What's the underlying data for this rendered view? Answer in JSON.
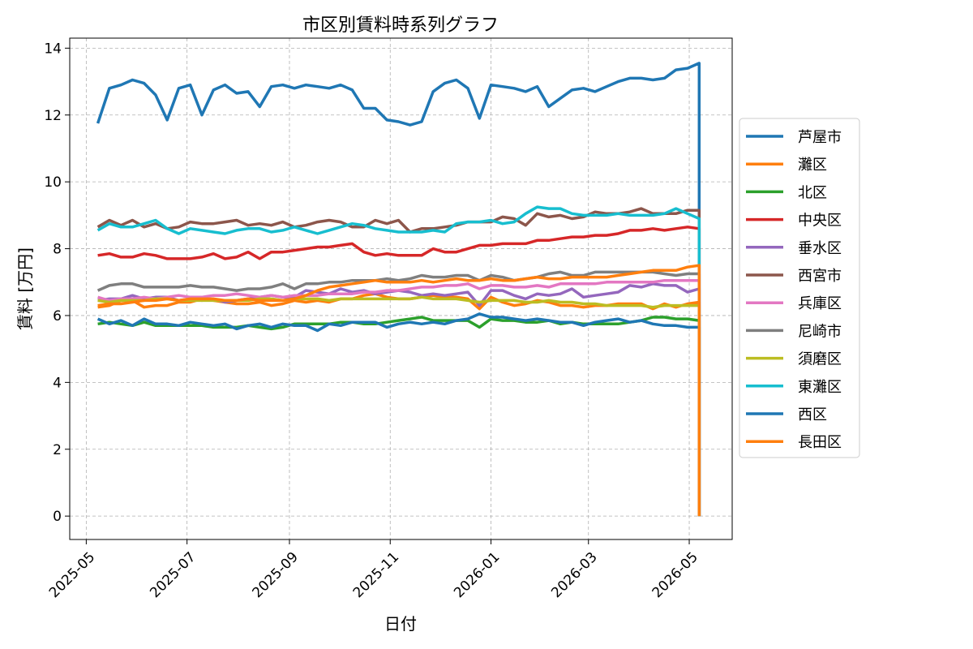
{
  "chart_data": {
    "type": "line",
    "title": "市区別賃料時系列グラフ",
    "xlabel": "日付",
    "ylabel": "賃料 [万円]",
    "ylim": [
      -0.7,
      14.3
    ],
    "yticks": [
      0,
      2,
      4,
      6,
      8,
      10,
      12,
      14
    ],
    "xlim": [
      "2025-04-21",
      "2026-05-27"
    ],
    "xticks": [
      "2025-05-01",
      "2025-07-01",
      "2025-09-01",
      "2025-11-01",
      "2026-01-01",
      "2026-03-01",
      "2026-05-01"
    ],
    "xtick_labels": [
      "2025-05",
      "2025-07",
      "2025-09",
      "2025-11",
      "2026-01",
      "2026-03",
      "2026-05"
    ],
    "grid": true,
    "legend_position": "right-outside",
    "x_dates": [
      "2025-05-08",
      "2025-05-15",
      "2025-05-22",
      "2025-05-29",
      "2025-06-05",
      "2025-06-12",
      "2025-06-19",
      "2025-06-26",
      "2025-07-03",
      "2025-07-10",
      "2025-07-17",
      "2025-07-24",
      "2025-07-31",
      "2025-08-07",
      "2025-08-14",
      "2025-08-21",
      "2025-08-28",
      "2025-09-04",
      "2025-09-11",
      "2025-09-18",
      "2025-09-25",
      "2025-10-02",
      "2025-10-09",
      "2025-10-16",
      "2025-10-23",
      "2025-10-30",
      "2025-11-06",
      "2025-11-13",
      "2025-11-20",
      "2025-11-27",
      "2025-12-04",
      "2025-12-11",
      "2025-12-18",
      "2025-12-25",
      "2026-01-01",
      "2026-01-08",
      "2026-01-15",
      "2026-01-22",
      "2026-01-29",
      "2026-02-05",
      "2026-02-12",
      "2026-02-19",
      "2026-02-26",
      "2026-03-05",
      "2026-03-12",
      "2026-03-19",
      "2026-03-26",
      "2026-04-02",
      "2026-04-09",
      "2026-04-16",
      "2026-04-23",
      "2026-04-30",
      "2026-05-07"
    ],
    "final_point": {
      "x": "2026-05-07",
      "y": 0
    },
    "series": [
      {
        "name": "芦屋市",
        "color": "#1f77b4",
        "values": [
          11.75,
          12.8,
          12.9,
          13.05,
          12.95,
          12.6,
          11.85,
          12.8,
          12.9,
          12.0,
          12.75,
          12.9,
          12.65,
          12.7,
          12.25,
          12.85,
          12.9,
          12.8,
          12.9,
          12.85,
          12.8,
          12.9,
          12.75,
          12.2,
          12.2,
          11.85,
          11.8,
          11.7,
          11.8,
          12.7,
          12.95,
          13.05,
          12.8,
          11.9,
          12.9,
          12.85,
          12.8,
          12.7,
          12.85,
          12.25,
          12.5,
          12.75,
          12.8,
          12.7,
          12.85,
          13.0,
          13.1,
          13.1,
          13.05,
          13.1,
          13.35,
          13.4,
          13.55
        ]
      },
      {
        "name": "灘区",
        "color": "#ff7f0e",
        "values": [
          6.25,
          6.3,
          6.45,
          6.45,
          6.25,
          6.3,
          6.3,
          6.4,
          6.4,
          6.5,
          6.45,
          6.4,
          6.35,
          6.35,
          6.4,
          6.3,
          6.35,
          6.45,
          6.4,
          6.45,
          6.4,
          6.5,
          6.5,
          6.6,
          6.65,
          6.55,
          6.5,
          6.5,
          6.55,
          6.6,
          6.55,
          6.55,
          6.5,
          6.2,
          6.55,
          6.4,
          6.3,
          6.35,
          6.45,
          6.4,
          6.3,
          6.3,
          6.25,
          6.3,
          6.3,
          6.35,
          6.35,
          6.35,
          6.2,
          6.35,
          6.25,
          6.35,
          6.4
        ]
      },
      {
        "name": "北区",
        "color": "#2ca02c",
        "values": [
          5.75,
          5.8,
          5.75,
          5.7,
          5.8,
          5.7,
          5.7,
          5.7,
          5.7,
          5.7,
          5.65,
          5.65,
          5.65,
          5.7,
          5.65,
          5.6,
          5.65,
          5.75,
          5.75,
          5.75,
          5.75,
          5.8,
          5.8,
          5.75,
          5.75,
          5.8,
          5.85,
          5.9,
          5.95,
          5.85,
          5.85,
          5.85,
          5.85,
          5.65,
          5.9,
          5.85,
          5.85,
          5.8,
          5.8,
          5.85,
          5.75,
          5.8,
          5.75,
          5.75,
          5.75,
          5.75,
          5.8,
          5.85,
          5.95,
          5.95,
          5.9,
          5.9,
          5.85
        ]
      },
      {
        "name": "中央区",
        "color": "#d62728",
        "values": [
          7.8,
          7.85,
          7.75,
          7.75,
          7.85,
          7.8,
          7.7,
          7.7,
          7.7,
          7.75,
          7.85,
          7.7,
          7.75,
          7.9,
          7.7,
          7.9,
          7.9,
          7.95,
          8.0,
          8.05,
          8.05,
          8.1,
          8.15,
          7.9,
          7.8,
          7.85,
          7.8,
          7.8,
          7.8,
          8.0,
          7.9,
          7.9,
          8.0,
          8.1,
          8.1,
          8.15,
          8.15,
          8.15,
          8.25,
          8.25,
          8.3,
          8.35,
          8.35,
          8.4,
          8.4,
          8.45,
          8.55,
          8.55,
          8.6,
          8.55,
          8.6,
          8.65,
          8.6
        ]
      },
      {
        "name": "垂水区",
        "color": "#9467bd",
        "values": [
          6.45,
          6.5,
          6.5,
          6.6,
          6.5,
          6.55,
          6.55,
          6.45,
          6.5,
          6.45,
          6.5,
          6.4,
          6.45,
          6.5,
          6.55,
          6.6,
          6.55,
          6.55,
          6.75,
          6.7,
          6.65,
          6.8,
          6.7,
          6.75,
          6.65,
          6.7,
          6.75,
          6.7,
          6.6,
          6.65,
          6.6,
          6.65,
          6.7,
          6.3,
          6.75,
          6.75,
          6.6,
          6.5,
          6.65,
          6.6,
          6.65,
          6.8,
          6.55,
          6.6,
          6.65,
          6.7,
          6.9,
          6.85,
          6.95,
          6.9,
          6.9,
          6.7,
          6.8
        ]
      },
      {
        "name": "西宮市",
        "color": "#8c564b",
        "values": [
          8.65,
          8.85,
          8.7,
          8.85,
          8.65,
          8.75,
          8.6,
          8.65,
          8.8,
          8.75,
          8.75,
          8.8,
          8.85,
          8.7,
          8.75,
          8.7,
          8.8,
          8.65,
          8.7,
          8.8,
          8.85,
          8.8,
          8.65,
          8.65,
          8.85,
          8.75,
          8.85,
          8.5,
          8.6,
          8.6,
          8.65,
          8.7,
          8.8,
          8.8,
          8.8,
          8.95,
          8.9,
          8.7,
          9.05,
          8.95,
          9.0,
          8.9,
          8.95,
          9.1,
          9.05,
          9.05,
          9.1,
          9.2,
          9.05,
          9.05,
          9.05,
          9.15,
          9.15
        ]
      },
      {
        "name": "兵庫区",
        "color": "#e377c2",
        "values": [
          6.55,
          6.45,
          6.5,
          6.5,
          6.55,
          6.5,
          6.55,
          6.6,
          6.55,
          6.55,
          6.6,
          6.6,
          6.65,
          6.6,
          6.55,
          6.6,
          6.55,
          6.6,
          6.6,
          6.6,
          6.65,
          6.65,
          6.65,
          6.7,
          6.7,
          6.75,
          6.75,
          6.8,
          6.85,
          6.85,
          6.9,
          6.9,
          6.95,
          6.8,
          6.9,
          6.9,
          6.85,
          6.85,
          6.9,
          6.85,
          6.95,
          6.95,
          6.95,
          6.95,
          7.0,
          7.0,
          7.0,
          7.0,
          7.0,
          7.05,
          7.05,
          7.05,
          7.05
        ]
      },
      {
        "name": "尼崎市",
        "color": "#7f7f7f",
        "values": [
          6.75,
          6.9,
          6.95,
          6.95,
          6.85,
          6.85,
          6.85,
          6.85,
          6.9,
          6.85,
          6.85,
          6.8,
          6.75,
          6.8,
          6.8,
          6.85,
          6.95,
          6.8,
          6.95,
          6.95,
          7.0,
          7.0,
          7.05,
          7.05,
          7.05,
          7.1,
          7.05,
          7.1,
          7.2,
          7.15,
          7.15,
          7.2,
          7.2,
          7.05,
          7.2,
          7.15,
          7.05,
          7.1,
          7.15,
          7.25,
          7.3,
          7.2,
          7.2,
          7.3,
          7.3,
          7.3,
          7.3,
          7.3,
          7.3,
          7.25,
          7.2,
          7.25,
          7.25
        ]
      },
      {
        "name": "須磨区",
        "color": "#bcbd22",
        "values": [
          6.45,
          6.4,
          6.45,
          6.45,
          6.45,
          6.5,
          6.5,
          6.45,
          6.45,
          6.45,
          6.45,
          6.45,
          6.45,
          6.45,
          6.5,
          6.5,
          6.45,
          6.5,
          6.5,
          6.5,
          6.45,
          6.5,
          6.5,
          6.5,
          6.5,
          6.5,
          6.5,
          6.5,
          6.55,
          6.5,
          6.5,
          6.5,
          6.45,
          6.4,
          6.45,
          6.45,
          6.45,
          6.4,
          6.4,
          6.45,
          6.4,
          6.4,
          6.35,
          6.35,
          6.3,
          6.3,
          6.3,
          6.3,
          6.25,
          6.3,
          6.3,
          6.3,
          6.3
        ]
      },
      {
        "name": "東灘区",
        "color": "#17becf",
        "values": [
          8.55,
          8.75,
          8.65,
          8.65,
          8.75,
          8.85,
          8.6,
          8.45,
          8.6,
          8.55,
          8.5,
          8.45,
          8.55,
          8.6,
          8.6,
          8.5,
          8.55,
          8.65,
          8.55,
          8.45,
          8.55,
          8.65,
          8.75,
          8.7,
          8.6,
          8.55,
          8.5,
          8.5,
          8.5,
          8.55,
          8.5,
          8.75,
          8.8,
          8.8,
          8.85,
          8.75,
          8.8,
          9.05,
          9.25,
          9.2,
          9.2,
          9.05,
          9.0,
          9.0,
          9.0,
          9.05,
          9.0,
          9.0,
          9.0,
          9.05,
          9.2,
          9.05,
          8.9
        ]
      },
      {
        "name": "西区",
        "color": "#1f77b4",
        "values": [
          5.9,
          5.75,
          5.85,
          5.7,
          5.9,
          5.75,
          5.75,
          5.7,
          5.8,
          5.75,
          5.7,
          5.75,
          5.6,
          5.7,
          5.75,
          5.65,
          5.75,
          5.7,
          5.7,
          5.55,
          5.75,
          5.7,
          5.8,
          5.8,
          5.8,
          5.65,
          5.75,
          5.8,
          5.75,
          5.8,
          5.75,
          5.85,
          5.9,
          6.05,
          5.95,
          5.95,
          5.9,
          5.85,
          5.9,
          5.85,
          5.8,
          5.8,
          5.7,
          5.8,
          5.85,
          5.9,
          5.8,
          5.85,
          5.75,
          5.7,
          5.7,
          5.65,
          5.65
        ]
      },
      {
        "name": "長田区",
        "color": "#ff7f0e",
        "values": [
          6.3,
          6.35,
          6.35,
          6.4,
          6.45,
          6.45,
          6.5,
          6.45,
          6.5,
          6.5,
          6.5,
          6.45,
          6.45,
          6.5,
          6.45,
          6.45,
          6.45,
          6.5,
          6.6,
          6.75,
          6.85,
          6.9,
          6.95,
          7.0,
          7.05,
          7.0,
          7.0,
          7.0,
          7.05,
          7.0,
          7.05,
          7.1,
          7.05,
          7.05,
          7.1,
          7.05,
          7.05,
          7.1,
          7.15,
          7.1,
          7.1,
          7.15,
          7.15,
          7.15,
          7.15,
          7.2,
          7.25,
          7.3,
          7.35,
          7.35,
          7.35,
          7.45,
          7.5
        ]
      }
    ],
    "drop_series": "尼崎市"
  }
}
